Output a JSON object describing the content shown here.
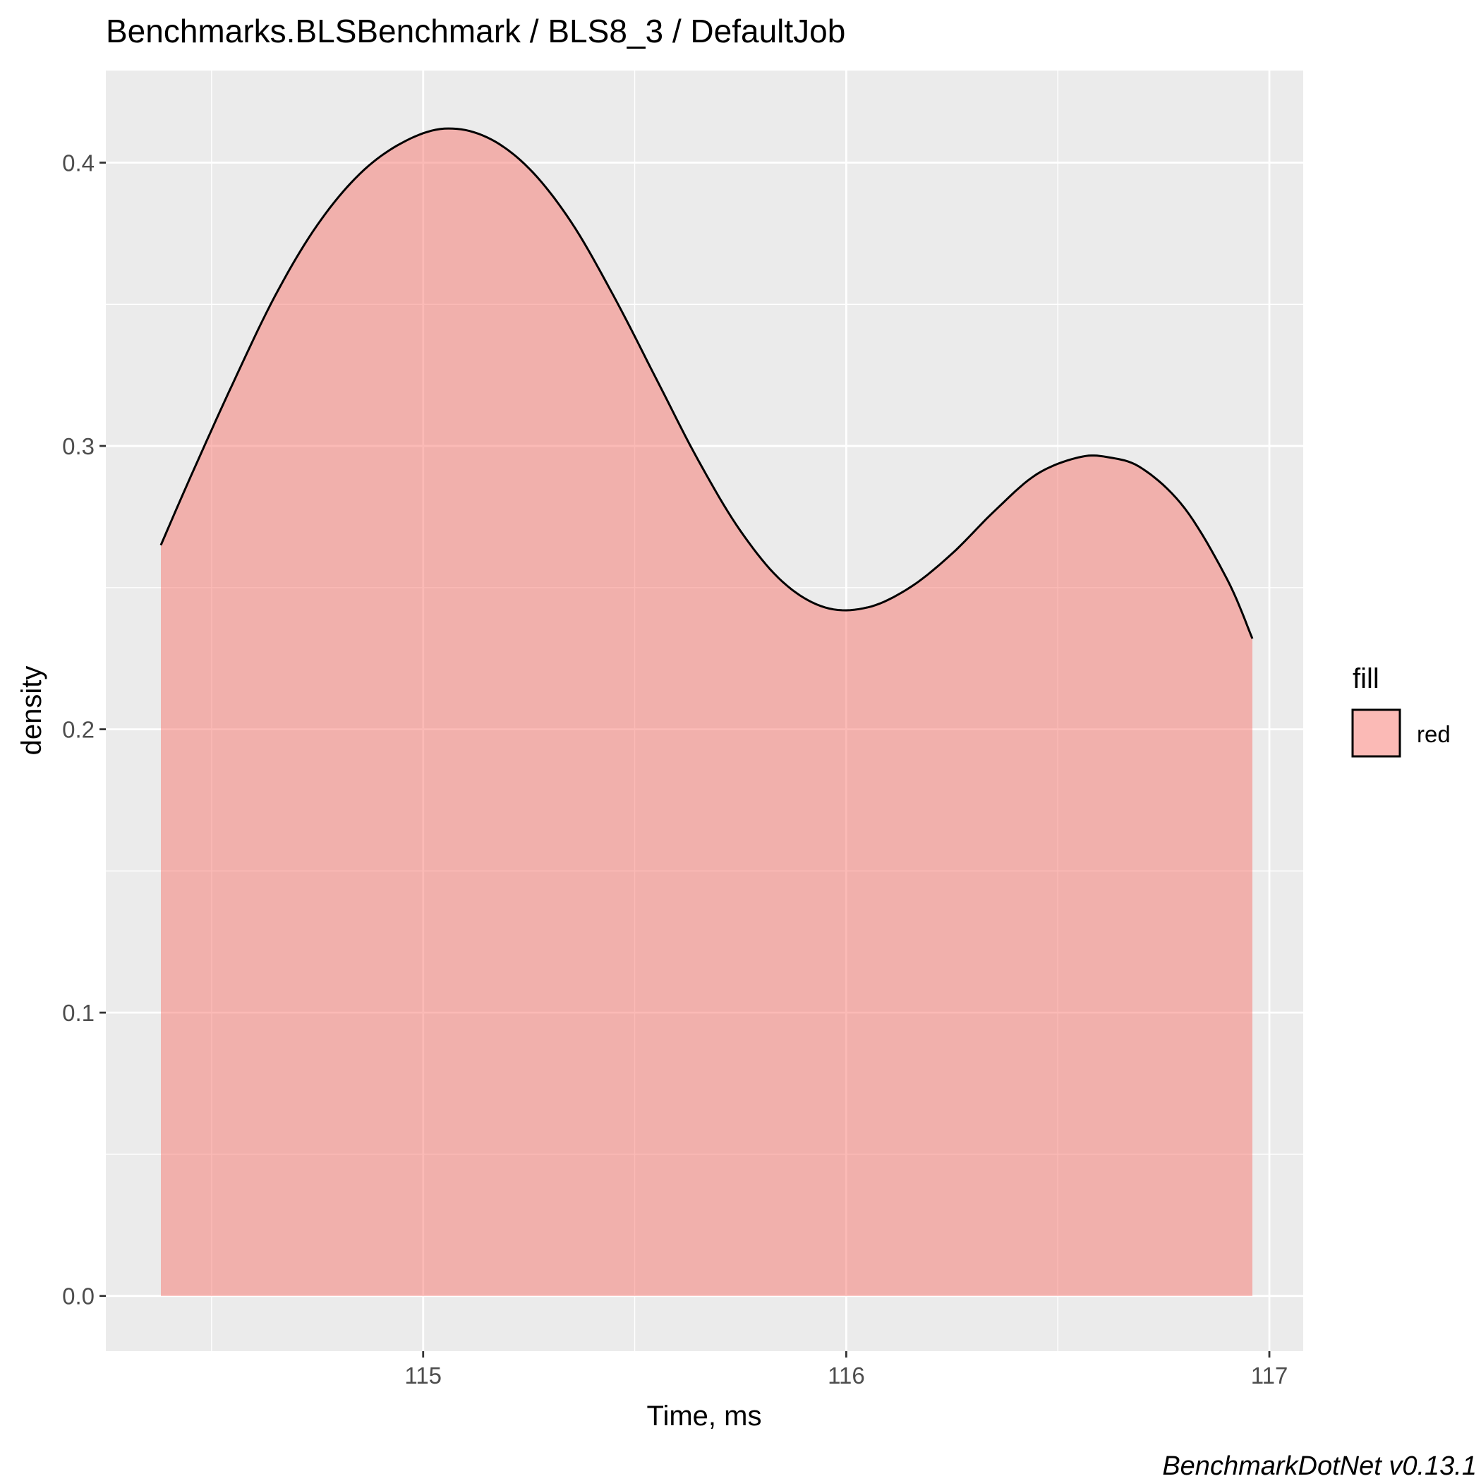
{
  "chart_data": {
    "type": "area",
    "title": "Benchmarks.BLSBenchmark / BLS8_3 / DefaultJob",
    "xlabel": "Time, ms",
    "ylabel": "density",
    "caption": "BenchmarkDotNet v0.13.1",
    "xlim": [
      114.25,
      117.08
    ],
    "ylim": [
      -0.0195,
      0.4325
    ],
    "x_ticks": [
      115,
      116,
      117
    ],
    "x_tick_labels": [
      "115",
      "116",
      "117"
    ],
    "x_minor_ticks": [
      114.5,
      115.5,
      116.5
    ],
    "y_ticks": [
      0.0,
      0.1,
      0.2,
      0.3,
      0.4
    ],
    "y_tick_labels": [
      "0.0",
      "0.1",
      "0.2",
      "0.3",
      "0.4"
    ],
    "y_minor_ticks": [
      0.05,
      0.15,
      0.25,
      0.35
    ],
    "grid": true,
    "legend": {
      "title": "fill",
      "position": "right",
      "entries": [
        {
          "label": "red",
          "color": "#F8766D"
        }
      ]
    },
    "series": [
      {
        "name": "red",
        "x": [
          114.38,
          114.45,
          114.55,
          114.65,
          114.75,
          114.85,
          114.95,
          115.05,
          115.15,
          115.25,
          115.35,
          115.45,
          115.55,
          115.65,
          115.75,
          115.85,
          115.95,
          116.05,
          116.15,
          116.25,
          116.35,
          116.45,
          116.55,
          116.62,
          116.7,
          116.8,
          116.9,
          116.96
        ],
        "values": [
          0.265,
          0.289,
          0.322,
          0.353,
          0.378,
          0.396,
          0.407,
          0.412,
          0.409,
          0.398,
          0.379,
          0.353,
          0.324,
          0.295,
          0.27,
          0.252,
          0.243,
          0.243,
          0.25,
          0.262,
          0.277,
          0.29,
          0.296,
          0.296,
          0.292,
          0.278,
          0.253,
          0.232
        ]
      }
    ],
    "colors": {
      "panel": "#EBEBEB",
      "grid_major": "#FFFFFF",
      "fill": "#F8766D",
      "outline": "#000000",
      "axis_text": "#4D4D4D"
    }
  }
}
